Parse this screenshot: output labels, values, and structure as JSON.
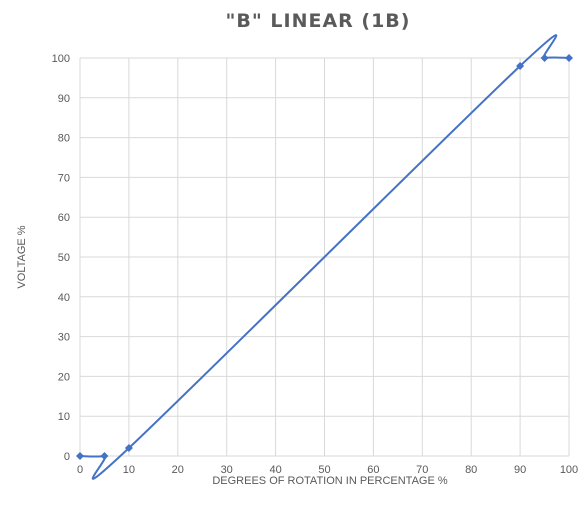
{
  "chart_data": {
    "type": "line",
    "title": "\"B\" LINEAR (1B)",
    "xlabel": "DEGREES OF ROTATION IN PERCENTAGE %",
    "ylabel": "VOLTAGE %",
    "xlim": [
      0,
      100
    ],
    "ylim": [
      0,
      100
    ],
    "x_ticks": [
      "0",
      "10",
      "20",
      "30",
      "40",
      "50",
      "60",
      "70",
      "80",
      "90",
      "100"
    ],
    "y_ticks": [
      "0",
      "10",
      "20",
      "30",
      "40",
      "50",
      "60",
      "70",
      "80",
      "90",
      "100"
    ],
    "grid": true,
    "smooth": true,
    "marker": "diamond",
    "series": [
      {
        "color": "#4472c4",
        "x": [
          0,
          5,
          10,
          90,
          95,
          100
        ],
        "y": [
          0,
          0,
          2,
          98,
          100,
          100
        ]
      }
    ]
  }
}
